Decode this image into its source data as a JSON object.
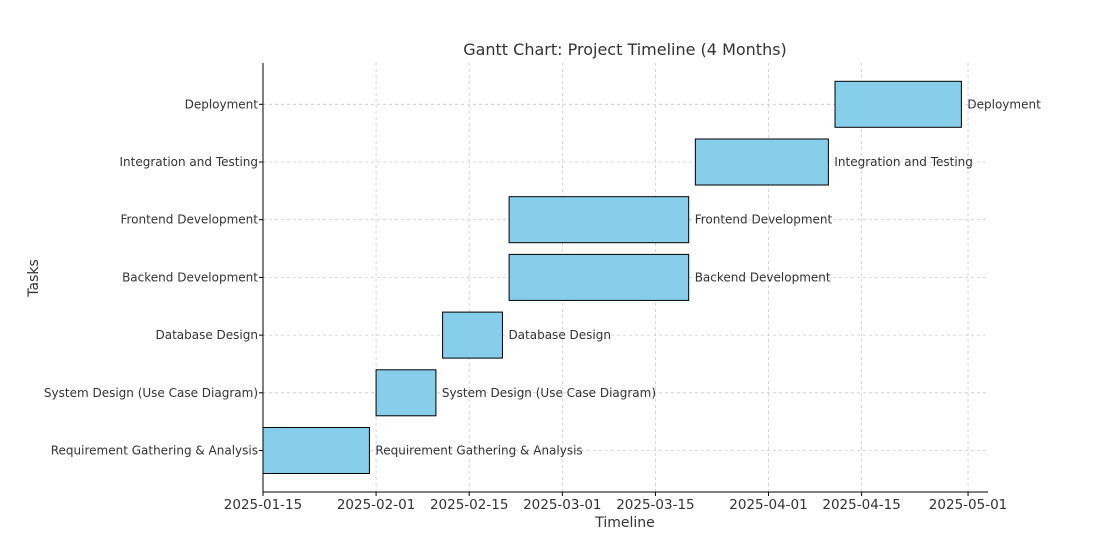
{
  "chart_data": {
    "type": "gantt",
    "title": "Gantt Chart: Project Timeline (4 Months)",
    "xlabel": "Timeline",
    "ylabel": "Tasks",
    "x_type": "date",
    "xlim": [
      "2025-01-15",
      "2025-05-04"
    ],
    "x_ticks": [
      "2025-01-15",
      "2025-02-01",
      "2025-02-15",
      "2025-03-01",
      "2025-03-15",
      "2025-04-01",
      "2025-04-15",
      "2025-05-01"
    ],
    "grid": true,
    "bar_color": "#87ceeb",
    "bar_edge_color": "#000000",
    "tasks": [
      {
        "name": "Requirement Gathering & Analysis",
        "start": "2025-01-15",
        "end": "2025-01-31"
      },
      {
        "name": "System Design (Use Case Diagram)",
        "start": "2025-02-01",
        "end": "2025-02-10"
      },
      {
        "name": "Database Design",
        "start": "2025-02-11",
        "end": "2025-02-20"
      },
      {
        "name": "Backend Development",
        "start": "2025-02-21",
        "end": "2025-03-20"
      },
      {
        "name": "Frontend Development",
        "start": "2025-02-21",
        "end": "2025-03-20"
      },
      {
        "name": "Integration and Testing",
        "start": "2025-03-21",
        "end": "2025-04-10"
      },
      {
        "name": "Deployment",
        "start": "2025-04-11",
        "end": "2025-04-30"
      }
    ]
  }
}
